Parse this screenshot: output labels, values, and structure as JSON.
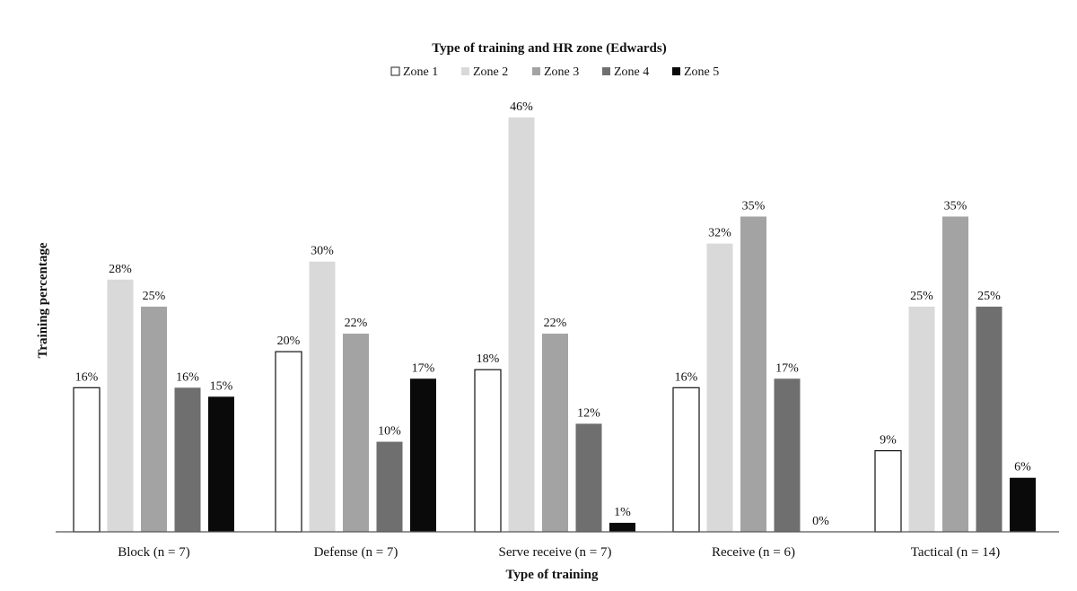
{
  "chart_data": {
    "type": "bar",
    "title": "Type of training and HR zone (Edwards)",
    "xlabel": "Type of training",
    "ylabel": "Training percentage",
    "categories": [
      "Block (n = 7)",
      "Defense (n = 7)",
      "Serve receive (n = 7)",
      "Receive (n = 6)",
      "Tactical (n = 14)"
    ],
    "series": [
      {
        "name": "Zone 1",
        "color": "#ffffff",
        "values": [
          16,
          20,
          18,
          16,
          9
        ],
        "labels": [
          "16%",
          "20%",
          "18%",
          "16%",
          "9%"
        ]
      },
      {
        "name": "Zone 2",
        "color": "#d9d9d9",
        "values": [
          28,
          30,
          46,
          32,
          25
        ],
        "labels": [
          "28%",
          "30%",
          "46%",
          "32%",
          "25%"
        ]
      },
      {
        "name": "Zone 3",
        "color": "#a3a3a3",
        "values": [
          25,
          22,
          22,
          35,
          35
        ],
        "labels": [
          "25%",
          "22%",
          "22%",
          "35%",
          "35%"
        ]
      },
      {
        "name": "Zone 4",
        "color": "#6f6f6f",
        "values": [
          16,
          10,
          12,
          17,
          25
        ],
        "labels": [
          "16%",
          "10%",
          "12%",
          "17%",
          "25%"
        ]
      },
      {
        "name": "Zone 5",
        "color": "#0a0a0a",
        "values": [
          15,
          17,
          1,
          0,
          6
        ],
        "labels": [
          "15%",
          "17%",
          "1%",
          "0%",
          "6%"
        ]
      }
    ],
    "ylim": [
      0,
      46
    ],
    "grid": false,
    "legend_position": "top-center"
  }
}
